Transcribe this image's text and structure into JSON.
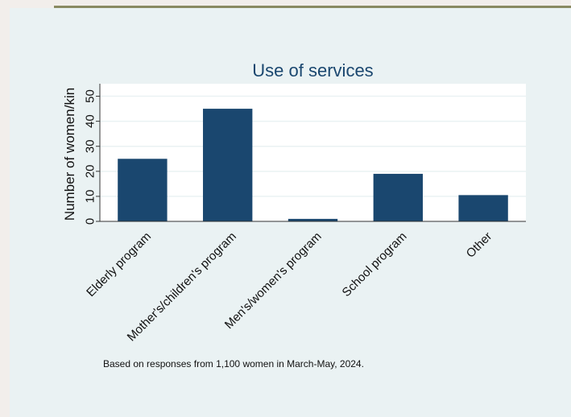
{
  "chart_data": {
    "type": "bar",
    "title": "Use of services",
    "ylabel": "Number of women/kin",
    "xlabel": "",
    "categories": [
      "Elderly program",
      "Mother's/children's program",
      "Men's/women's program",
      "School program",
      "Other"
    ],
    "values": [
      25,
      45,
      1,
      19,
      10.5
    ],
    "ylim": [
      0,
      55
    ],
    "yticks": [
      "0",
      "10",
      "20",
      "30",
      "40",
      "50"
    ],
    "grid": true,
    "legend": "none",
    "note": "Based on responses from 1,100 women in March-May, 2024."
  },
  "colors": {
    "bar": "#1a476f",
    "plot_background": "#ffffff",
    "grid": "#eaf2f3",
    "frame_background": "#eaf2f3",
    "accent_rule": "#8a8a62"
  }
}
